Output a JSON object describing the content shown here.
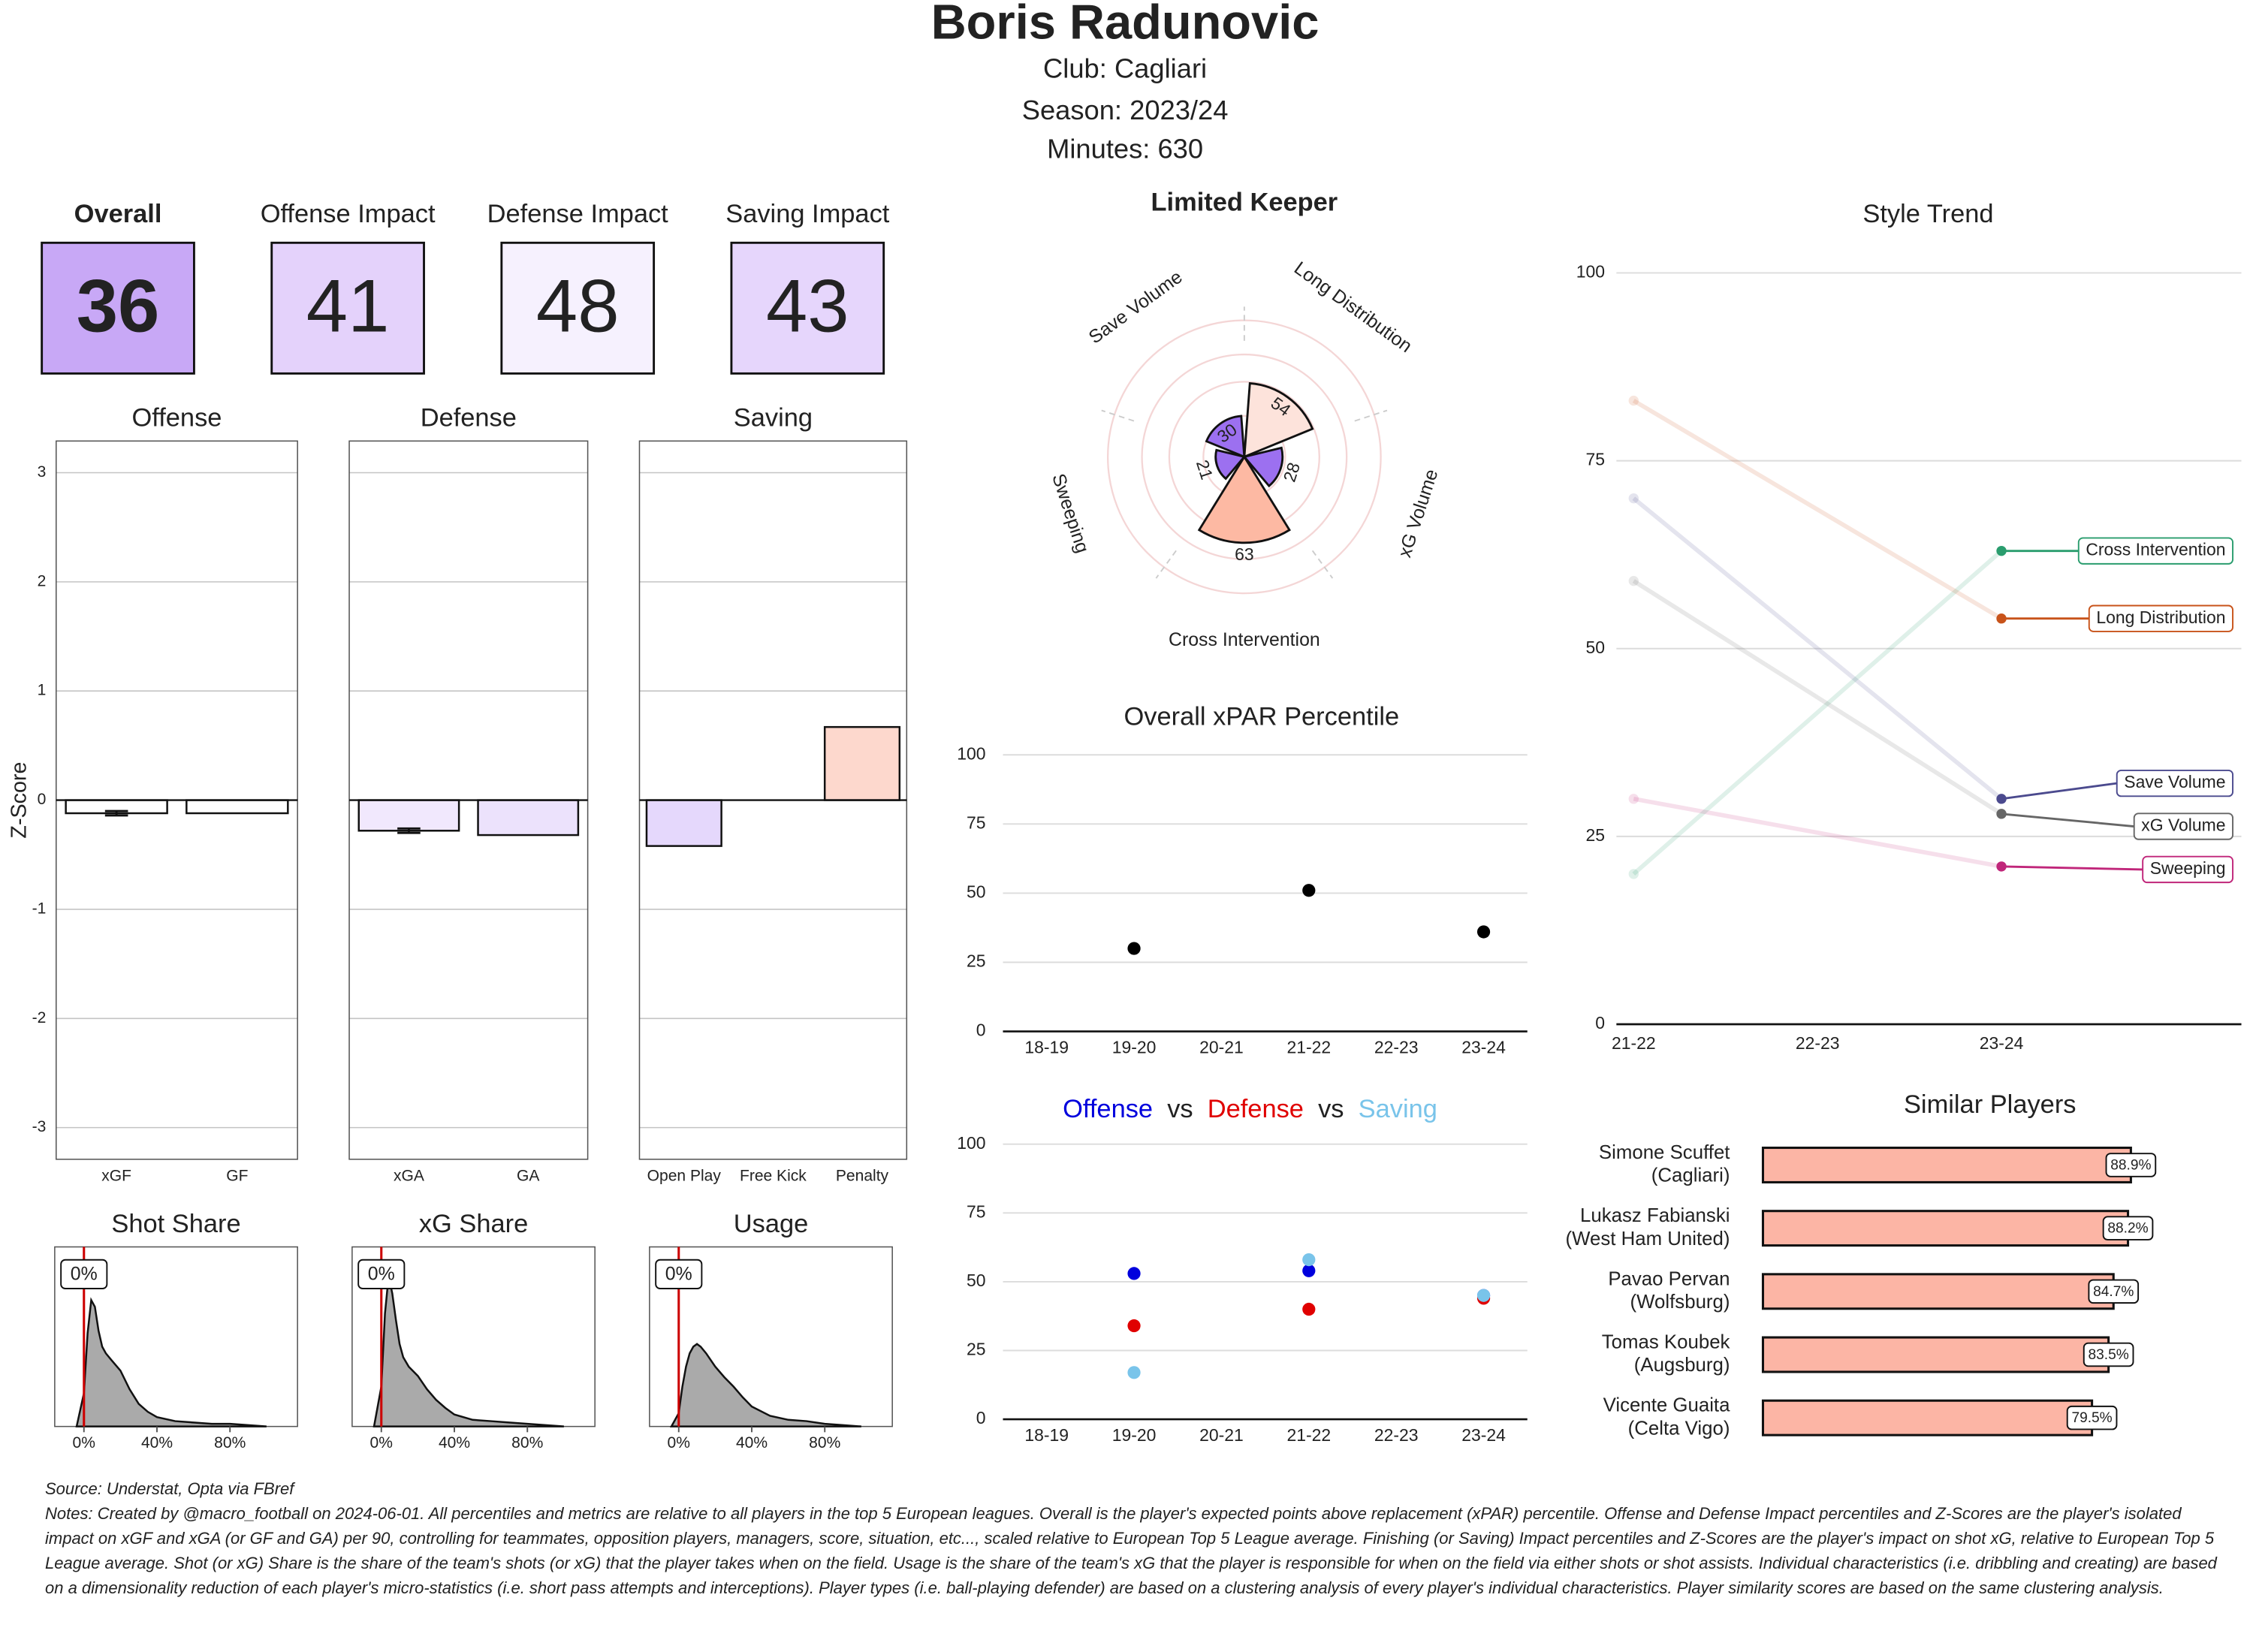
{
  "header": {
    "title": "Boris Radunovic",
    "club": "Club:  Cagliari",
    "season": "Season:  2023/24",
    "minutes": "Minutes:  630"
  },
  "chart_data": [
    {
      "type": "tiles",
      "labels": [
        "Overall",
        "Offense Impact",
        "Defense Impact",
        "Saving Impact"
      ],
      "values": [
        36,
        41,
        48,
        43
      ],
      "colors": [
        "#c8a8f6",
        "#e4d2fb",
        "#f6f1fe",
        "#e6d6fc"
      ]
    },
    {
      "type": "bar-facets",
      "ylabel": "Z-Score",
      "ylim": [
        -3.29,
        3.29
      ],
      "yticks": [
        -3,
        -2,
        -1,
        0,
        1,
        2,
        3
      ],
      "grid": true,
      "panels": [
        {
          "title": "Offense",
          "categories": [
            "xGF",
            "GF"
          ],
          "values": [
            -0.12,
            -0.12
          ],
          "errors": [
            0.02,
            null
          ],
          "colors": [
            "#ffffff",
            "#ffffff"
          ]
        },
        {
          "title": "Defense",
          "categories": [
            "xGA",
            "GA"
          ],
          "values": [
            -0.28,
            -0.32
          ],
          "errors": [
            0.02,
            null
          ],
          "colors": [
            "#f1e8fd",
            "#ece2fc"
          ]
        },
        {
          "title": "Saving",
          "categories": [
            "Open Play",
            "Free Kick",
            "Penalty"
          ],
          "values": [
            -0.42,
            null,
            0.67
          ],
          "errors": [
            null,
            null,
            null
          ],
          "colors": [
            "#e5d8fc",
            "#ffffff",
            "#fdd8cd"
          ]
        }
      ]
    },
    {
      "type": "density-facets",
      "xlim": [
        -16,
        117
      ],
      "ylim": [
        0,
        1.35
      ],
      "xticks": [
        {
          "value": 0,
          "label": "0%"
        },
        {
          "value": 40,
          "label": "40%"
        },
        {
          "value": 80,
          "label": "80%"
        }
      ],
      "marker": {
        "value": 0,
        "label": "0%"
      },
      "color": "#aaaaaa",
      "marker_color": "#cc0000",
      "panels": [
        {
          "title": "Shot Share",
          "x": [
            -4,
            0,
            2,
            4,
            6,
            8,
            10,
            12,
            15,
            20,
            25,
            30,
            35,
            40,
            50,
            60,
            70,
            80,
            90,
            100
          ],
          "values": [
            0,
            0.25,
            0.7,
            0.95,
            0.9,
            0.72,
            0.6,
            0.55,
            0.5,
            0.42,
            0.28,
            0.17,
            0.11,
            0.07,
            0.04,
            0.03,
            0.02,
            0.02,
            0.01,
            0
          ]
        },
        {
          "title": "xG Share",
          "x": [
            -4,
            0,
            2,
            4,
            6,
            8,
            10,
            12,
            15,
            20,
            25,
            30,
            35,
            40,
            50,
            60,
            70,
            80,
            90,
            100
          ],
          "values": [
            0,
            0.3,
            0.85,
            1.13,
            1.0,
            0.8,
            0.62,
            0.52,
            0.45,
            0.38,
            0.28,
            0.2,
            0.14,
            0.09,
            0.05,
            0.04,
            0.03,
            0.02,
            0.01,
            0
          ]
        },
        {
          "title": "Usage",
          "x": [
            -4,
            0,
            2,
            4,
            6,
            8,
            10,
            12,
            15,
            20,
            25,
            30,
            35,
            40,
            50,
            60,
            70,
            80,
            90,
            100
          ],
          "values": [
            0,
            0.1,
            0.3,
            0.45,
            0.55,
            0.6,
            0.62,
            0.6,
            0.55,
            0.45,
            0.37,
            0.3,
            0.22,
            0.15,
            0.08,
            0.05,
            0.04,
            0.02,
            0.01,
            0
          ]
        }
      ]
    },
    {
      "type": "polar",
      "title": "Limited Keeper",
      "categories": [
        "Long Distribution",
        "xG Volume",
        "Cross Intervention",
        "Sweeping",
        "Save Volume"
      ],
      "values": [
        54,
        28,
        63,
        21,
        30
      ],
      "colors": [
        "#fde3db",
        "#9c70f0",
        "#fdb9a3",
        "#9c70f0",
        "#9c70f0"
      ],
      "ylim": [
        0,
        100
      ]
    },
    {
      "type": "dot",
      "title": "Overall xPAR Percentile",
      "categories": [
        "18-19",
        "19-20",
        "20-21",
        "21-22",
        "22-23",
        "23-24"
      ],
      "values": [
        null,
        30,
        null,
        51,
        null,
        36
      ],
      "color": "#000000",
      "ylim": [
        0,
        107
      ],
      "yticks": [
        0,
        25,
        50,
        75,
        100
      ],
      "grid": true
    },
    {
      "type": "dot",
      "title_separator": "vs",
      "categories": [
        "18-19",
        "19-20",
        "20-21",
        "21-22",
        "22-23",
        "23-24"
      ],
      "ylim": [
        0,
        106
      ],
      "yticks": [
        0,
        25,
        50,
        75,
        100
      ],
      "grid": true,
      "series": [
        {
          "name": "Offense",
          "color": "#0000dd",
          "values": [
            null,
            53,
            null,
            54,
            null,
            45
          ]
        },
        {
          "name": "Defense",
          "color": "#e00000",
          "values": [
            null,
            34,
            null,
            40,
            null,
            44
          ]
        },
        {
          "name": "Saving",
          "color": "#79c4ea",
          "values": [
            null,
            17,
            null,
            58,
            null,
            45
          ]
        }
      ]
    },
    {
      "type": "slope",
      "title": "Style Trend",
      "categories": [
        "21-22",
        "22-23",
        "23-24"
      ],
      "ylim": [
        0,
        100
      ],
      "yticks": [
        0,
        25,
        50,
        75,
        100
      ],
      "grid": true,
      "series": [
        {
          "name": "Cross Intervention",
          "color": "#2a9d6e",
          "values": [
            20,
            null,
            63
          ]
        },
        {
          "name": "Long Distribution",
          "color": "#c8531a",
          "values": [
            83,
            null,
            54
          ]
        },
        {
          "name": "Save Volume",
          "color": "#4b4a8e",
          "values": [
            70,
            null,
            30
          ]
        },
        {
          "name": "xG Volume",
          "color": "#666666",
          "values": [
            59,
            null,
            28
          ]
        },
        {
          "name": "Sweeping",
          "color": "#c0267a",
          "values": [
            30,
            null,
            21
          ]
        }
      ]
    },
    {
      "type": "hbar",
      "title": "Similar Players",
      "names": [
        "Simone Scuffet",
        "Lukasz Fabianski",
        "Pavao Pervan",
        "Tomas Koubek",
        "Vicente Guaita"
      ],
      "clubs": [
        "(Cagliari)",
        "(West Ham United)",
        "(Wolfsburg)",
        "(Augsburg)",
        "(Celta Vigo)"
      ],
      "values": [
        88.9,
        88.2,
        84.7,
        83.5,
        79.5
      ],
      "value_labels": [
        "88.9%",
        "88.2%",
        "84.7%",
        "83.5%",
        "79.5%"
      ],
      "color": "#fcb5a5",
      "xlim": [
        0,
        115.6
      ]
    }
  ],
  "footer": {
    "source": "Source: Understat, Opta via FBref",
    "notes": "Notes: Created by @macro_football on 2024-06-01. All percentiles and metrics are relative to all players in the top 5 European leagues. Overall is the player's expected points above replacement (xPAR) percentile. Offense and Defense Impact percentiles and Z-Scores are the player's isolated impact on xGF and xGA (or GF and GA) per 90, controlling for teammates, opposition players, managers, score, situation, etc..., scaled relative to European Top 5 League average. Finishing (or Saving) Impact percentiles and Z-Scores are the player's impact on shot xG, relative to European Top 5 League average. Shot (or xG) Share is the share of the team's shots (or xG) that the player takes when on the field. Usage is the share of the team's xG that the player is responsible for when on the field via either shots or shot assists. Individual characteristics (i.e. dribbling and creating) are based on a dimensionality reduction of each player's micro-statistics (i.e. short pass attempts and interceptions). Player types (i.e. ball-playing defender) are based on a clustering analysis of every player's individual characteristics. Player similarity scores are based on the same clustering analysis."
  }
}
